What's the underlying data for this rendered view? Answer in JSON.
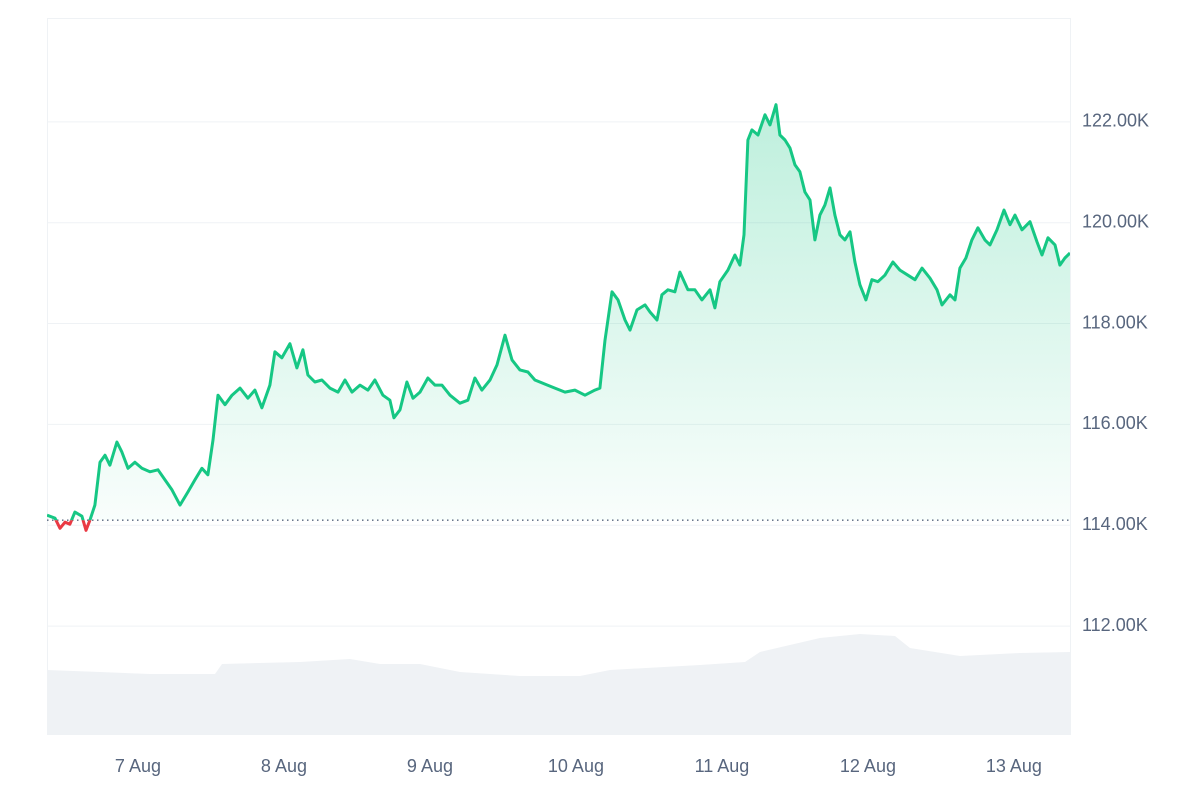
{
  "chart_data": {
    "type": "line",
    "color": "#16c784",
    "down_color": "#ea3943",
    "baseline": 114.1,
    "grid": true,
    "xlim": [
      6.377,
      13.384
    ],
    "xticks": [
      {
        "value": 7,
        "label": "7 Aug"
      },
      {
        "value": 8,
        "label": "8 Aug"
      },
      {
        "value": 9,
        "label": "9 Aug"
      },
      {
        "value": 10,
        "label": "10 Aug"
      },
      {
        "value": 11,
        "label": "11 Aug"
      },
      {
        "value": 12,
        "label": "12 Aug"
      },
      {
        "value": 13,
        "label": "13 Aug"
      }
    ],
    "ylim": [
      109.84,
      124.06
    ],
    "yticks": [
      {
        "value": 112,
        "label": "112.00K"
      },
      {
        "value": 114,
        "label": "114.00K"
      },
      {
        "value": 116,
        "label": "116.00K"
      },
      {
        "value": 118,
        "label": "118.00K"
      },
      {
        "value": 120,
        "label": "120.00K"
      },
      {
        "value": 122,
        "label": "122.00K"
      }
    ],
    "x": [
      6.377,
      6.432,
      6.466,
      6.5,
      6.534,
      6.568,
      6.616,
      6.644,
      6.671,
      6.705,
      6.74,
      6.774,
      6.808,
      6.856,
      6.89,
      6.932,
      6.979,
      7.027,
      7.082,
      7.137,
      7.185,
      7.233,
      7.288,
      7.342,
      7.39,
      7.438,
      7.479,
      7.514,
      7.548,
      7.596,
      7.644,
      7.699,
      7.753,
      7.801,
      7.849,
      7.904,
      7.938,
      7.986,
      8.041,
      8.089,
      8.13,
      8.164,
      8.212,
      8.26,
      8.315,
      8.37,
      8.418,
      8.466,
      8.521,
      8.575,
      8.623,
      8.678,
      8.726,
      8.753,
      8.795,
      8.842,
      8.884,
      8.932,
      8.986,
      9.034,
      9.082,
      9.137,
      9.205,
      9.26,
      9.308,
      9.356,
      9.411,
      9.459,
      9.514,
      9.562,
      9.616,
      9.671,
      9.719,
      9.788,
      9.856,
      9.925,
      9.993,
      10.062,
      10.13,
      10.164,
      10.199,
      10.247,
      10.288,
      10.336,
      10.37,
      10.418,
      10.473,
      10.507,
      10.555,
      10.589,
      10.63,
      10.678,
      10.712,
      10.767,
      10.815,
      10.863,
      10.918,
      10.952,
      10.986,
      11.041,
      11.089,
      11.123,
      11.151,
      11.178,
      11.205,
      11.247,
      11.295,
      11.329,
      11.37,
      11.397,
      11.432,
      11.466,
      11.5,
      11.534,
      11.568,
      11.603,
      11.637,
      11.671,
      11.705,
      11.74,
      11.774,
      11.808,
      11.842,
      11.877,
      11.911,
      11.945,
      11.986,
      12.027,
      12.068,
      12.116,
      12.171,
      12.219,
      12.274,
      12.322,
      12.37,
      12.425,
      12.473,
      12.507,
      12.562,
      12.596,
      12.63,
      12.671,
      12.712,
      12.753,
      12.801,
      12.836,
      12.884,
      12.932,
      12.973,
      13.007,
      13.055,
      13.11,
      13.158,
      13.192,
      13.233,
      13.281,
      13.315,
      13.349,
      13.384
    ],
    "values": [
      114.2,
      114.14,
      113.94,
      114.06,
      114.02,
      114.26,
      114.18,
      113.9,
      114.1,
      114.4,
      115.25,
      115.39,
      115.19,
      115.65,
      115.45,
      115.13,
      115.25,
      115.13,
      115.06,
      115.1,
      114.9,
      114.7,
      114.4,
      114.66,
      114.9,
      115.13,
      115.0,
      115.69,
      116.58,
      116.39,
      116.58,
      116.72,
      116.52,
      116.68,
      116.33,
      116.78,
      117.44,
      117.32,
      117.6,
      117.12,
      117.48,
      116.98,
      116.84,
      116.88,
      116.72,
      116.64,
      116.88,
      116.64,
      116.78,
      116.68,
      116.88,
      116.58,
      116.48,
      116.13,
      116.29,
      116.84,
      116.52,
      116.64,
      116.92,
      116.78,
      116.78,
      116.58,
      116.42,
      116.48,
      116.92,
      116.68,
      116.88,
      117.18,
      117.77,
      117.28,
      117.08,
      117.04,
      116.88,
      116.8,
      116.72,
      116.64,
      116.68,
      116.58,
      116.68,
      116.72,
      117.67,
      118.63,
      118.47,
      118.07,
      117.87,
      118.27,
      118.37,
      118.23,
      118.07,
      118.57,
      118.67,
      118.63,
      119.02,
      118.67,
      118.67,
      118.47,
      118.67,
      118.31,
      118.83,
      119.06,
      119.36,
      119.16,
      119.76,
      121.64,
      121.84,
      121.74,
      122.14,
      121.94,
      122.34,
      121.74,
      121.64,
      121.48,
      121.15,
      121.01,
      120.61,
      120.45,
      119.66,
      120.15,
      120.35,
      120.69,
      120.15,
      119.76,
      119.66,
      119.82,
      119.22,
      118.77,
      118.47,
      118.87,
      118.83,
      118.96,
      119.22,
      119.06,
      118.96,
      118.87,
      119.1,
      118.9,
      118.67,
      118.37,
      118.57,
      118.47,
      119.1,
      119.3,
      119.66,
      119.9,
      119.66,
      119.56,
      119.86,
      120.25,
      119.96,
      120.15,
      119.86,
      120.02,
      119.62,
      119.36,
      119.7,
      119.56,
      119.16,
      119.3,
      119.4
    ]
  }
}
